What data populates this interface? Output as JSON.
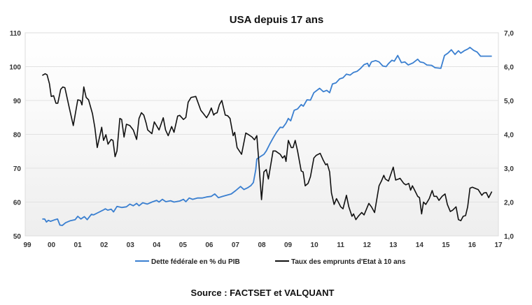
{
  "chart_data": {
    "type": "line",
    "title": "USA depuis 17  ans",
    "source": "Source : FACTSET et VALQUANT",
    "xlim": [
      1999,
      2017
    ],
    "x_tick_labels": [
      "99",
      "00",
      "01",
      "02",
      "03",
      "04",
      "05",
      "06",
      "07",
      "08",
      "09",
      "10",
      "11",
      "12",
      "13",
      "14",
      "15",
      "16",
      "17"
    ],
    "y_left": {
      "lim": [
        50,
        110
      ],
      "ticks": [
        "50",
        "60",
        "70",
        "80",
        "90",
        "100",
        "110"
      ]
    },
    "y_right": {
      "lim": [
        1.0,
        7.0
      ],
      "ticks": [
        "1,0",
        "2,0",
        "3,0",
        "4,0",
        "5,0",
        "6,0",
        "7,0"
      ]
    },
    "grid": true,
    "legend_position": "bottom",
    "series": [
      {
        "name": "Dette fédérale en % du PIB",
        "axis": "left",
        "color": "#3a7fd0",
        "points": [
          [
            1999.65,
            55.0
          ],
          [
            1999.74,
            55.0
          ],
          [
            1999.81,
            54.1
          ],
          [
            1999.88,
            54.6
          ],
          [
            1999.96,
            54.3
          ],
          [
            2000.14,
            54.8
          ],
          [
            2000.23,
            55.0
          ],
          [
            2000.32,
            53.2
          ],
          [
            2000.41,
            53.1
          ],
          [
            2000.54,
            53.9
          ],
          [
            2000.72,
            54.5
          ],
          [
            2000.9,
            54.8
          ],
          [
            2001.0,
            55.8
          ],
          [
            2001.12,
            55.0
          ],
          [
            2001.25,
            55.7
          ],
          [
            2001.36,
            54.8
          ],
          [
            2001.52,
            56.4
          ],
          [
            2001.6,
            56.2
          ],
          [
            2001.78,
            56.9
          ],
          [
            2001.96,
            57.6
          ],
          [
            2002.05,
            58.0
          ],
          [
            2002.14,
            57.6
          ],
          [
            2002.27,
            57.9
          ],
          [
            2002.36,
            57.1
          ],
          [
            2002.49,
            58.7
          ],
          [
            2002.67,
            58.4
          ],
          [
            2002.85,
            58.6
          ],
          [
            2002.98,
            59.4
          ],
          [
            2003.11,
            58.9
          ],
          [
            2003.24,
            59.6
          ],
          [
            2003.33,
            58.9
          ],
          [
            2003.47,
            59.8
          ],
          [
            2003.64,
            59.4
          ],
          [
            2003.82,
            60.0
          ],
          [
            2004.0,
            60.5
          ],
          [
            2004.09,
            60.0
          ],
          [
            2004.22,
            60.8
          ],
          [
            2004.35,
            60.1
          ],
          [
            2004.53,
            60.4
          ],
          [
            2004.66,
            60.0
          ],
          [
            2004.88,
            60.3
          ],
          [
            2005.02,
            60.8
          ],
          [
            2005.11,
            60.1
          ],
          [
            2005.24,
            61.2
          ],
          [
            2005.37,
            60.8
          ],
          [
            2005.55,
            61.2
          ],
          [
            2005.73,
            61.2
          ],
          [
            2005.9,
            61.5
          ],
          [
            2006.08,
            61.7
          ],
          [
            2006.21,
            62.4
          ],
          [
            2006.35,
            61.3
          ],
          [
            2006.52,
            61.7
          ],
          [
            2006.66,
            62.0
          ],
          [
            2006.84,
            62.4
          ],
          [
            2007.01,
            63.4
          ],
          [
            2007.19,
            64.6
          ],
          [
            2007.32,
            63.7
          ],
          [
            2007.46,
            64.2
          ],
          [
            2007.59,
            64.9
          ],
          [
            2007.68,
            65.8
          ],
          [
            2007.77,
            69.6
          ],
          [
            2007.81,
            72.7
          ],
          [
            2007.94,
            73.4
          ],
          [
            2008.08,
            74.1
          ],
          [
            2008.17,
            75.1
          ],
          [
            2008.3,
            77.1
          ],
          [
            2008.43,
            78.9
          ],
          [
            2008.56,
            80.6
          ],
          [
            2008.7,
            82.1
          ],
          [
            2008.8,
            82.0
          ],
          [
            2008.92,
            83.3
          ],
          [
            2009.01,
            84.7
          ],
          [
            2009.1,
            84.0
          ],
          [
            2009.23,
            87.1
          ],
          [
            2009.36,
            87.5
          ],
          [
            2009.5,
            88.8
          ],
          [
            2009.58,
            88.3
          ],
          [
            2009.72,
            90.2
          ],
          [
            2009.85,
            90.1
          ],
          [
            2009.98,
            92.3
          ],
          [
            2010.2,
            93.6
          ],
          [
            2010.34,
            92.6
          ],
          [
            2010.47,
            93.0
          ],
          [
            2010.58,
            92.3
          ],
          [
            2010.69,
            94.9
          ],
          [
            2010.82,
            95.2
          ],
          [
            2010.96,
            96.4
          ],
          [
            2011.09,
            96.7
          ],
          [
            2011.22,
            97.8
          ],
          [
            2011.36,
            97.5
          ],
          [
            2011.49,
            98.3
          ],
          [
            2011.62,
            98.6
          ],
          [
            2011.76,
            99.5
          ],
          [
            2011.89,
            100.6
          ],
          [
            2012.02,
            101.0
          ],
          [
            2012.08,
            100.0
          ],
          [
            2012.17,
            101.4
          ],
          [
            2012.33,
            101.8
          ],
          [
            2012.46,
            101.4
          ],
          [
            2012.6,
            100.2
          ],
          [
            2012.73,
            100.0
          ],
          [
            2012.82,
            100.9
          ],
          [
            2012.95,
            101.9
          ],
          [
            2013.04,
            101.6
          ],
          [
            2013.17,
            103.3
          ],
          [
            2013.31,
            101.2
          ],
          [
            2013.44,
            101.4
          ],
          [
            2013.57,
            100.5
          ],
          [
            2013.75,
            101.1
          ],
          [
            2013.93,
            102.2
          ],
          [
            2014.02,
            101.4
          ],
          [
            2014.15,
            101.2
          ],
          [
            2014.28,
            100.5
          ],
          [
            2014.46,
            100.4
          ],
          [
            2014.59,
            99.7
          ],
          [
            2014.81,
            99.5
          ],
          [
            2014.95,
            103.3
          ],
          [
            2015.08,
            104.0
          ],
          [
            2015.21,
            105.0
          ],
          [
            2015.35,
            103.6
          ],
          [
            2015.48,
            104.7
          ],
          [
            2015.57,
            104.0
          ],
          [
            2015.7,
            104.7
          ],
          [
            2015.83,
            105.2
          ],
          [
            2015.92,
            105.7
          ],
          [
            2016.06,
            104.8
          ],
          [
            2016.19,
            104.3
          ],
          [
            2016.32,
            103.1
          ],
          [
            2016.75,
            103.1
          ]
        ]
      },
      {
        "name": "Taux des emprunts d'Etat à 10 ans",
        "axis": "right",
        "color": "#111111",
        "points": [
          [
            1999.65,
            5.74
          ],
          [
            1999.76,
            5.79
          ],
          [
            1999.83,
            5.76
          ],
          [
            1999.92,
            5.5
          ],
          [
            1999.99,
            5.12
          ],
          [
            2000.08,
            5.14
          ],
          [
            2000.17,
            4.92
          ],
          [
            2000.24,
            4.92
          ],
          [
            2000.35,
            5.33
          ],
          [
            2000.43,
            5.4
          ],
          [
            2000.51,
            5.38
          ],
          [
            2000.67,
            4.81
          ],
          [
            2000.83,
            4.26
          ],
          [
            2001.0,
            5.02
          ],
          [
            2001.1,
            5.0
          ],
          [
            2001.16,
            4.87
          ],
          [
            2001.23,
            5.4
          ],
          [
            2001.32,
            5.09
          ],
          [
            2001.41,
            5.02
          ],
          [
            2001.56,
            4.61
          ],
          [
            2001.65,
            4.2
          ],
          [
            2001.74,
            3.61
          ],
          [
            2001.91,
            4.21
          ],
          [
            2001.98,
            3.82
          ],
          [
            2002.07,
            3.99
          ],
          [
            2002.15,
            3.71
          ],
          [
            2002.27,
            3.85
          ],
          [
            2002.34,
            3.82
          ],
          [
            2002.42,
            3.34
          ],
          [
            2002.49,
            3.51
          ],
          [
            2002.6,
            4.47
          ],
          [
            2002.67,
            4.44
          ],
          [
            2002.76,
            3.92
          ],
          [
            2002.85,
            4.3
          ],
          [
            2002.98,
            4.26
          ],
          [
            2003.11,
            4.13
          ],
          [
            2003.24,
            3.85
          ],
          [
            2003.33,
            4.47
          ],
          [
            2003.42,
            4.64
          ],
          [
            2003.51,
            4.57
          ],
          [
            2003.6,
            4.33
          ],
          [
            2003.66,
            4.13
          ],
          [
            2003.82,
            4.02
          ],
          [
            2003.91,
            4.37
          ],
          [
            2004.09,
            4.13
          ],
          [
            2004.25,
            4.49
          ],
          [
            2004.34,
            4.13
          ],
          [
            2004.44,
            3.96
          ],
          [
            2004.57,
            4.23
          ],
          [
            2004.66,
            4.06
          ],
          [
            2004.8,
            4.54
          ],
          [
            2004.88,
            4.56
          ],
          [
            2005.02,
            4.44
          ],
          [
            2005.11,
            4.5
          ],
          [
            2005.2,
            4.95
          ],
          [
            2005.31,
            5.09
          ],
          [
            2005.49,
            5.12
          ],
          [
            2005.68,
            4.71
          ],
          [
            2005.77,
            4.62
          ],
          [
            2005.9,
            4.49
          ],
          [
            2005.99,
            4.61
          ],
          [
            2006.08,
            4.78
          ],
          [
            2006.17,
            4.57
          ],
          [
            2006.21,
            4.61
          ],
          [
            2006.3,
            4.64
          ],
          [
            2006.39,
            4.88
          ],
          [
            2006.48,
            5.0
          ],
          [
            2006.61,
            4.57
          ],
          [
            2006.7,
            4.55
          ],
          [
            2006.79,
            4.47
          ],
          [
            2006.91,
            3.96
          ],
          [
            2006.97,
            4.06
          ],
          [
            2007.06,
            3.61
          ],
          [
            2007.23,
            3.41
          ],
          [
            2007.39,
            4.04
          ],
          [
            2007.5,
            3.99
          ],
          [
            2007.63,
            3.92
          ],
          [
            2007.72,
            3.84
          ],
          [
            2007.81,
            3.96
          ],
          [
            2007.87,
            3.37
          ],
          [
            2007.99,
            2.07
          ],
          [
            2008.08,
            2.89
          ],
          [
            2008.17,
            2.96
          ],
          [
            2008.25,
            2.68
          ],
          [
            2008.43,
            3.51
          ],
          [
            2008.52,
            3.51
          ],
          [
            2008.7,
            3.41
          ],
          [
            2008.79,
            3.3
          ],
          [
            2008.87,
            3.37
          ],
          [
            2008.92,
            3.2
          ],
          [
            2009.01,
            3.82
          ],
          [
            2009.12,
            3.61
          ],
          [
            2009.19,
            3.61
          ],
          [
            2009.27,
            3.82
          ],
          [
            2009.36,
            3.51
          ],
          [
            2009.5,
            2.92
          ],
          [
            2009.57,
            2.89
          ],
          [
            2009.65,
            2.48
          ],
          [
            2009.76,
            2.55
          ],
          [
            2009.85,
            2.75
          ],
          [
            2009.98,
            3.3
          ],
          [
            2010.07,
            3.38
          ],
          [
            2010.22,
            3.44
          ],
          [
            2010.34,
            3.23
          ],
          [
            2010.43,
            3.1
          ],
          [
            2010.49,
            3.13
          ],
          [
            2010.58,
            2.89
          ],
          [
            2010.65,
            2.27
          ],
          [
            2010.75,
            1.93
          ],
          [
            2010.84,
            2.1
          ],
          [
            2010.91,
            2.0
          ],
          [
            2011.0,
            1.86
          ],
          [
            2011.09,
            1.8
          ],
          [
            2011.22,
            2.2
          ],
          [
            2011.31,
            1.86
          ],
          [
            2011.43,
            1.58
          ],
          [
            2011.49,
            1.65
          ],
          [
            2011.58,
            1.48
          ],
          [
            2011.67,
            1.58
          ],
          [
            2011.8,
            1.69
          ],
          [
            2011.89,
            1.62
          ],
          [
            2012.07,
            1.96
          ],
          [
            2012.17,
            1.86
          ],
          [
            2012.29,
            1.69
          ],
          [
            2012.46,
            2.48
          ],
          [
            2012.55,
            2.62
          ],
          [
            2012.64,
            2.79
          ],
          [
            2012.7,
            2.68
          ],
          [
            2012.82,
            2.62
          ],
          [
            2013.0,
            3.03
          ],
          [
            2013.09,
            2.65
          ],
          [
            2013.2,
            2.68
          ],
          [
            2013.26,
            2.7
          ],
          [
            2013.4,
            2.55
          ],
          [
            2013.48,
            2.51
          ],
          [
            2013.59,
            2.55
          ],
          [
            2013.66,
            2.35
          ],
          [
            2013.73,
            2.48
          ],
          [
            2013.82,
            2.34
          ],
          [
            2013.93,
            2.17
          ],
          [
            2014.0,
            2.13
          ],
          [
            2014.08,
            1.65
          ],
          [
            2014.15,
            2.0
          ],
          [
            2014.24,
            1.93
          ],
          [
            2014.37,
            2.1
          ],
          [
            2014.48,
            2.34
          ],
          [
            2014.55,
            2.17
          ],
          [
            2014.65,
            2.17
          ],
          [
            2014.74,
            2.05
          ],
          [
            2014.86,
            2.17
          ],
          [
            2014.97,
            2.24
          ],
          [
            2015.06,
            1.93
          ],
          [
            2015.17,
            1.72
          ],
          [
            2015.26,
            1.76
          ],
          [
            2015.39,
            1.86
          ],
          [
            2015.48,
            1.48
          ],
          [
            2015.57,
            1.45
          ],
          [
            2015.66,
            1.58
          ],
          [
            2015.75,
            1.6
          ],
          [
            2015.83,
            1.86
          ],
          [
            2015.92,
            2.41
          ],
          [
            2016.01,
            2.44
          ],
          [
            2016.1,
            2.41
          ],
          [
            2016.23,
            2.37
          ],
          [
            2016.37,
            2.2
          ],
          [
            2016.45,
            2.27
          ],
          [
            2016.54,
            2.28
          ],
          [
            2016.63,
            2.13
          ],
          [
            2016.75,
            2.31
          ]
        ]
      }
    ]
  }
}
